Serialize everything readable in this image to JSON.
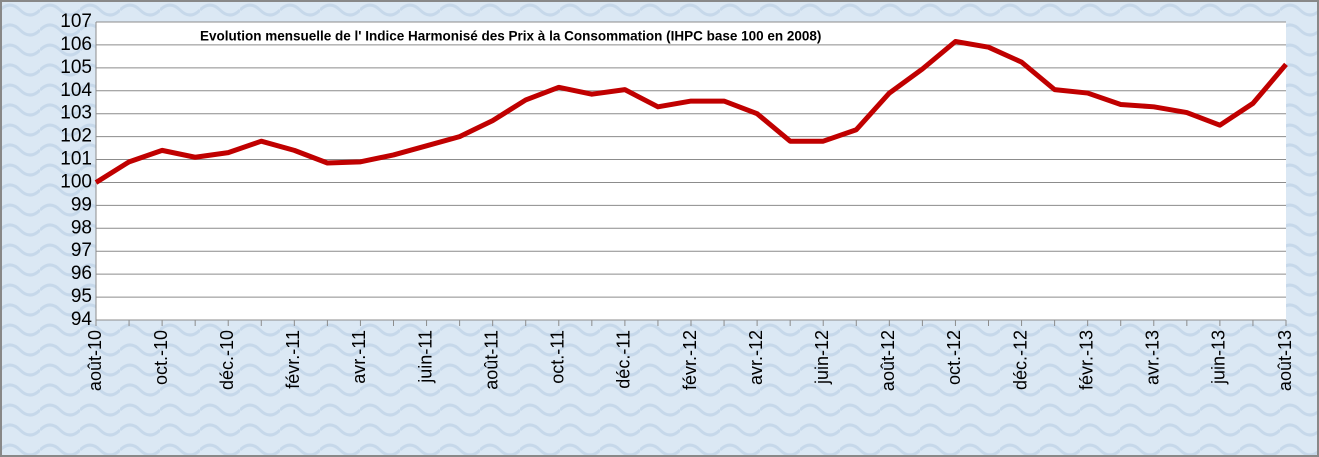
{
  "chart_data": {
    "type": "line",
    "title": "Evolution mensuelle de l' Indice Harmonisé des Prix à la Consommation (IHPC base 100 en 2008)",
    "categories": [
      "août-10",
      null,
      "oct.-10",
      null,
      "déc.-10",
      null,
      "févr.-11",
      null,
      "avr.-11",
      null,
      "juin-11",
      null,
      "août-11",
      null,
      "oct.-11",
      null,
      "déc.-11",
      null,
      "févr.-12",
      null,
      "avr.-12",
      null,
      "juin-12",
      null,
      "août-12",
      null,
      "oct.-12",
      null,
      "déc.-12",
      null,
      "févr.-13",
      null,
      "avr.-13",
      null,
      "juin-13",
      null,
      "août-13"
    ],
    "series": [
      {
        "name": "IHPC",
        "color": "#c00000",
        "values": [
          100.0,
          100.9,
          101.4,
          101.1,
          101.3,
          101.8,
          101.4,
          100.85,
          100.9,
          101.2,
          101.6,
          102.0,
          102.7,
          103.6,
          104.15,
          103.85,
          104.05,
          103.3,
          103.55,
          103.55,
          103.0,
          101.8,
          101.8,
          102.3,
          103.9,
          104.95,
          106.15,
          105.9,
          105.25,
          104.05,
          103.9,
          103.4,
          103.3,
          103.05,
          102.5,
          103.45,
          105.15
        ]
      }
    ],
    "ylim": [
      94,
      107
    ],
    "yticks": [
      94,
      95,
      96,
      97,
      98,
      99,
      100,
      101,
      102,
      103,
      104,
      105,
      106,
      107
    ],
    "grid": true
  }
}
